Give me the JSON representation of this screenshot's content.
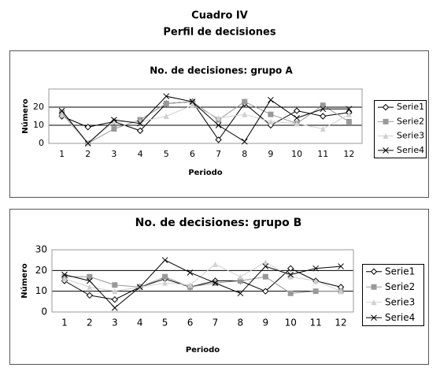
{
  "header": {
    "title": "Cuadro IV",
    "subtitle": "Perfil de decisiones"
  },
  "chart_data": [
    {
      "type": "line",
      "title": "No. de decisiones: grupo A",
      "x_label": "Periodo",
      "y_label": "Número",
      "categories": [
        "1",
        "2",
        "3",
        "4",
        "5",
        "6",
        "7",
        "8",
        "9",
        "10",
        "11",
        "12"
      ],
      "ylim": [
        0,
        30
      ],
      "yticks": [
        0,
        10,
        20
      ],
      "grid": true,
      "legend": "right",
      "series": [
        {
          "name": "Serie1",
          "color": "#000000",
          "marker": "diamond",
          "values": [
            15,
            9,
            12,
            7,
            22,
            23,
            2,
            22,
            10,
            18,
            15,
            17
          ]
        },
        {
          "name": "Serie2",
          "color": "#999999",
          "marker": "square",
          "values": [
            17,
            0,
            8,
            13,
            22,
            23,
            13,
            23,
            16,
            11,
            21,
            12
          ]
        },
        {
          "name": "Serie3",
          "color": "#d0d0d0",
          "marker": "triangle",
          "values": [
            16,
            0,
            12,
            12,
            15,
            21,
            14,
            16,
            12,
            11,
            8,
            16
          ]
        },
        {
          "name": "Serie4",
          "color": "#000000",
          "marker": "x",
          "values": [
            18,
            0,
            13,
            11,
            26,
            23,
            10,
            1,
            24,
            14,
            19,
            19
          ]
        }
      ]
    },
    {
      "type": "line",
      "title": "No. de decisiones: grupo B",
      "x_label": "Periodo",
      "y_label": "Número",
      "categories": [
        "1",
        "2",
        "3",
        "4",
        "5",
        "6",
        "7",
        "8",
        "9",
        "10",
        "11",
        "12"
      ],
      "ylim": [
        0,
        30
      ],
      "yticks": [
        0,
        10,
        20,
        30
      ],
      "grid": true,
      "legend": "right",
      "series": [
        {
          "name": "Serie1",
          "color": "#000000",
          "marker": "diamond",
          "values": [
            15,
            8,
            6,
            12,
            16,
            12,
            15,
            15,
            10,
            21,
            15,
            12
          ]
        },
        {
          "name": "Serie2",
          "color": "#999999",
          "marker": "square",
          "values": [
            17,
            17,
            13,
            12,
            17,
            12,
            14,
            15,
            17,
            9,
            10,
            10
          ]
        },
        {
          "name": "Serie3",
          "color": "#d0d0d0",
          "marker": "triangle",
          "values": [
            16,
            12,
            10,
            12,
            14,
            13,
            23,
            17,
            24,
            17,
            15,
            10
          ]
        },
        {
          "name": "Serie4",
          "color": "#000000",
          "marker": "x",
          "values": [
            18,
            15,
            2,
            12,
            25,
            19,
            14,
            9,
            22,
            18,
            21,
            22
          ]
        }
      ]
    }
  ]
}
